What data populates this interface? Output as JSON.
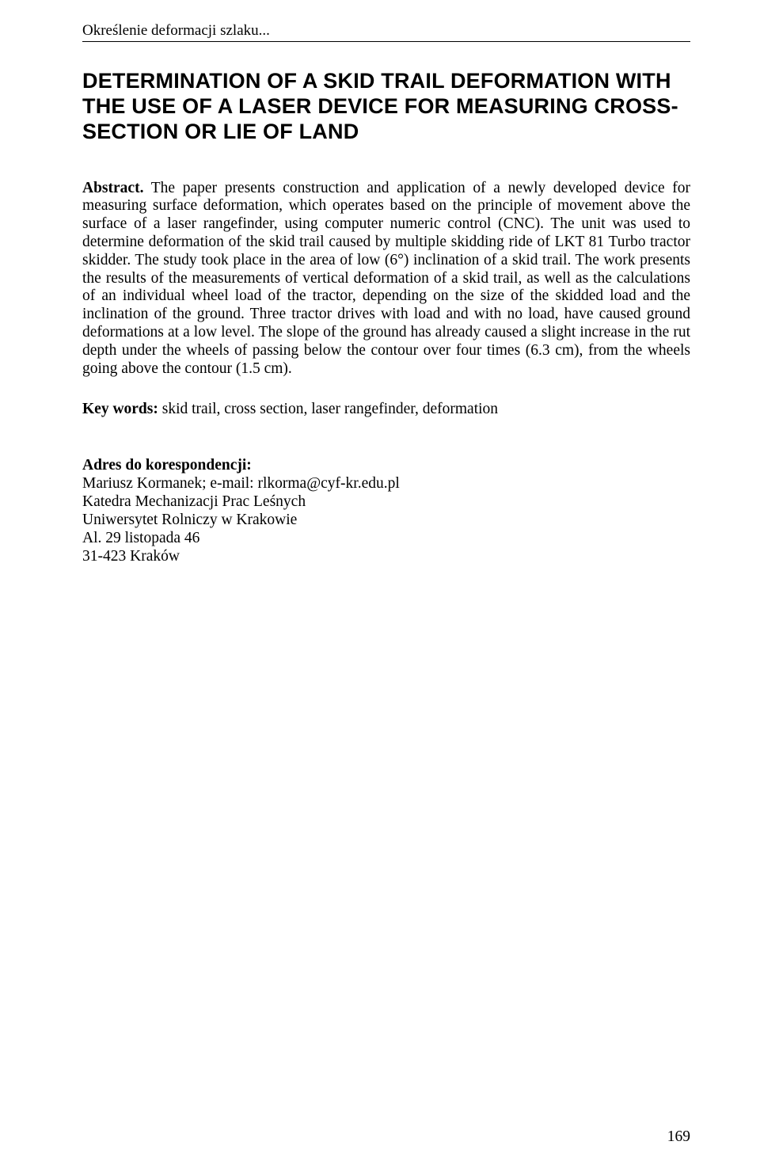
{
  "running_header": "Określenie deformacji szlaku...",
  "title": "DETERMINATION OF A SKID TRAIL DEFORMATION WITH THE USE OF A LASER DEVICE FOR MEASURING CROSS-SECTION OR LIE OF LAND",
  "abstract_lead": "Abstract.",
  "abstract_body": " The paper presents construction and application of a newly developed device for measuring surface deformation, which operates based on the principle of movement above the surface of a laser rangefinder, using computer numeric control (CNC). The unit was used to determine deformation of the skid trail caused by multiple skidding ride of LKT 81 Turbo tractor skidder. The study took place in the area of low (6°) inclination of a skid trail. The work presents the results of the measurements of vertical deformation of a skid trail, as well as the calculations of an individual wheel load of the tractor, depending on the size of the skidded load and the inclination of the ground. Three tractor drives with load and with no load, have caused ground deformations at a low level. The slope of the ground has already caused a slight increase in the rut depth under the wheels of passing below the contour over four times (6.3 cm), from the wheels going above the contour (1.5 cm).",
  "keywords_lead": "Key words:",
  "keywords_body": " skid trail, cross section, laser rangefinder, deformation",
  "corr": {
    "head": "Adres do korespondencji:",
    "line1": "Mariusz Kormanek; e-mail: rlkorma@cyf-kr.edu.pl",
    "line2": "Katedra Mechanizacji Prac Leśnych",
    "line3": "Uniwersytet Rolniczy w Krakowie",
    "line4": "Al. 29 listopada 46",
    "line5": "31-423 Kraków"
  },
  "page_number": "169"
}
